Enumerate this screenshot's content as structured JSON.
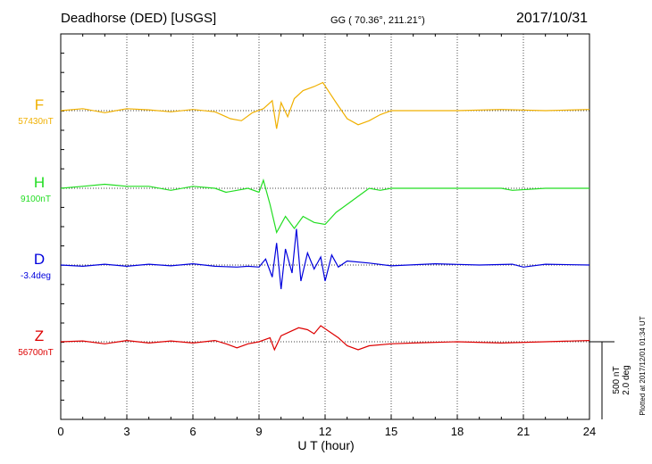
{
  "header": {
    "station": "Deadhorse (DED)  [USGS]",
    "coords": "GG ( 70.36°, 211.21°)",
    "date": "2017/10/31"
  },
  "side_note": "Plotted at 2017/12/01 01:34 UT",
  "scale": {
    "nt": "500 nT",
    "deg": "2.0 deg"
  },
  "chart_data": {
    "type": "line",
    "xlabel": "U T (hour)",
    "xlim": [
      0,
      24
    ],
    "xticks": [
      "0",
      "3",
      "6",
      "9",
      "12",
      "15",
      "18",
      "21",
      "24"
    ],
    "grid": true,
    "series": [
      {
        "name": "F",
        "baseline": "57430nT",
        "color": "#f0b000",
        "points": [
          [
            0,
            0
          ],
          [
            1,
            5
          ],
          [
            2,
            -5
          ],
          [
            3,
            5
          ],
          [
            4,
            2
          ],
          [
            5,
            -3
          ],
          [
            6,
            3
          ],
          [
            7,
            -3
          ],
          [
            7.7,
            -20
          ],
          [
            8.2,
            -25
          ],
          [
            8.7,
            -5
          ],
          [
            9.2,
            5
          ],
          [
            9.6,
            25
          ],
          [
            9.8,
            -45
          ],
          [
            10,
            20
          ],
          [
            10.3,
            -15
          ],
          [
            10.6,
            30
          ],
          [
            11,
            50
          ],
          [
            11.5,
            60
          ],
          [
            11.9,
            70
          ],
          [
            12.2,
            45
          ],
          [
            12.5,
            20
          ],
          [
            13,
            -20
          ],
          [
            13.5,
            -35
          ],
          [
            14,
            -25
          ],
          [
            14.5,
            -10
          ],
          [
            15,
            0
          ],
          [
            16,
            0
          ],
          [
            18,
            0
          ],
          [
            20,
            3
          ],
          [
            22,
            0
          ],
          [
            24,
            3
          ]
        ]
      },
      {
        "name": "H",
        "baseline": "9100nT",
        "color": "#22dd22",
        "points": [
          [
            0,
            0
          ],
          [
            1,
            5
          ],
          [
            2,
            10
          ],
          [
            3,
            5
          ],
          [
            4,
            5
          ],
          [
            5,
            -5
          ],
          [
            6,
            5
          ],
          [
            7,
            0
          ],
          [
            7.5,
            -10
          ],
          [
            8,
            -5
          ],
          [
            8.5,
            0
          ],
          [
            9,
            -10
          ],
          [
            9.2,
            20
          ],
          [
            9.5,
            -40
          ],
          [
            9.8,
            -110
          ],
          [
            10.2,
            -70
          ],
          [
            10.6,
            -100
          ],
          [
            11,
            -70
          ],
          [
            11.5,
            -85
          ],
          [
            12,
            -90
          ],
          [
            12.5,
            -60
          ],
          [
            13,
            -40
          ],
          [
            13.5,
            -20
          ],
          [
            14,
            0
          ],
          [
            14.5,
            -5
          ],
          [
            15,
            0
          ],
          [
            17,
            0
          ],
          [
            20,
            0
          ],
          [
            20.5,
            -5
          ],
          [
            22,
            0
          ],
          [
            24,
            0
          ]
        ]
      },
      {
        "name": "D",
        "baseline": "-3.4deg",
        "color": "#0000dd",
        "points": [
          [
            0,
            0
          ],
          [
            1,
            -3
          ],
          [
            2,
            2
          ],
          [
            3,
            -3
          ],
          [
            4,
            2
          ],
          [
            5,
            -2
          ],
          [
            6,
            3
          ],
          [
            7,
            -3
          ],
          [
            8,
            -5
          ],
          [
            8.5,
            -3
          ],
          [
            9,
            -5
          ],
          [
            9.3,
            15
          ],
          [
            9.6,
            -30
          ],
          [
            9.8,
            55
          ],
          [
            10,
            -60
          ],
          [
            10.2,
            40
          ],
          [
            10.5,
            -20
          ],
          [
            10.7,
            90
          ],
          [
            10.9,
            -40
          ],
          [
            11.2,
            30
          ],
          [
            11.5,
            -10
          ],
          [
            11.8,
            20
          ],
          [
            12,
            -40
          ],
          [
            12.3,
            25
          ],
          [
            12.6,
            -5
          ],
          [
            13,
            10
          ],
          [
            14,
            5
          ],
          [
            15,
            -2
          ],
          [
            17,
            3
          ],
          [
            19,
            0
          ],
          [
            20.5,
            2
          ],
          [
            21,
            -5
          ],
          [
            22,
            2
          ],
          [
            24,
            0
          ]
        ]
      },
      {
        "name": "Z",
        "baseline": "56700nT",
        "color": "#dd0000",
        "points": [
          [
            0,
            0
          ],
          [
            1,
            2
          ],
          [
            2,
            -5
          ],
          [
            3,
            3
          ],
          [
            4,
            -3
          ],
          [
            5,
            2
          ],
          [
            6,
            -3
          ],
          [
            7,
            3
          ],
          [
            7.5,
            -5
          ],
          [
            8,
            -15
          ],
          [
            8.5,
            -5
          ],
          [
            9,
            0
          ],
          [
            9.5,
            10
          ],
          [
            9.7,
            -20
          ],
          [
            10,
            15
          ],
          [
            10.4,
            25
          ],
          [
            10.8,
            35
          ],
          [
            11.2,
            30
          ],
          [
            11.5,
            20
          ],
          [
            11.8,
            40
          ],
          [
            12.2,
            25
          ],
          [
            12.6,
            10
          ],
          [
            13,
            -10
          ],
          [
            13.5,
            -20
          ],
          [
            14,
            -10
          ],
          [
            15,
            -5
          ],
          [
            16,
            -3
          ],
          [
            18,
            0
          ],
          [
            20,
            -3
          ],
          [
            22,
            0
          ],
          [
            24,
            3
          ]
        ]
      }
    ]
  }
}
